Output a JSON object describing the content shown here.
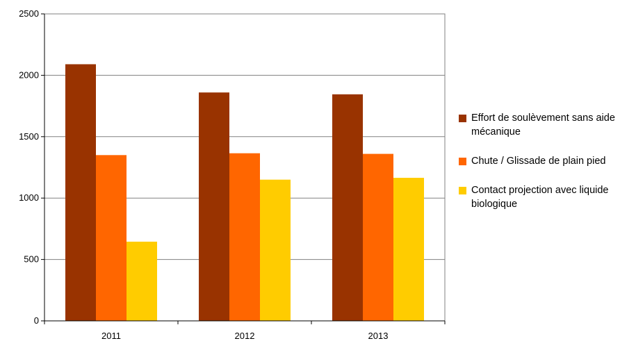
{
  "chart_data": {
    "type": "bar",
    "categories": [
      "2011",
      "2012",
      "2013"
    ],
    "series": [
      {
        "name": "Effort de soulèvement sans aide mécanique",
        "color": "#993300",
        "values": [
          2090,
          1860,
          1845
        ]
      },
      {
        "name": "Chute / Glissade de plain pied",
        "color": "#FF6600",
        "values": [
          1350,
          1365,
          1360
        ]
      },
      {
        "name": "Contact projection avec liquide biologique",
        "color": "#FFCC00",
        "values": [
          645,
          1150,
          1165
        ]
      }
    ],
    "ylim": [
      0,
      2500
    ],
    "yticks": [
      "0",
      "500",
      "1000",
      "1500",
      "2000",
      "2500"
    ],
    "grid": true,
    "legend_position": "right"
  }
}
